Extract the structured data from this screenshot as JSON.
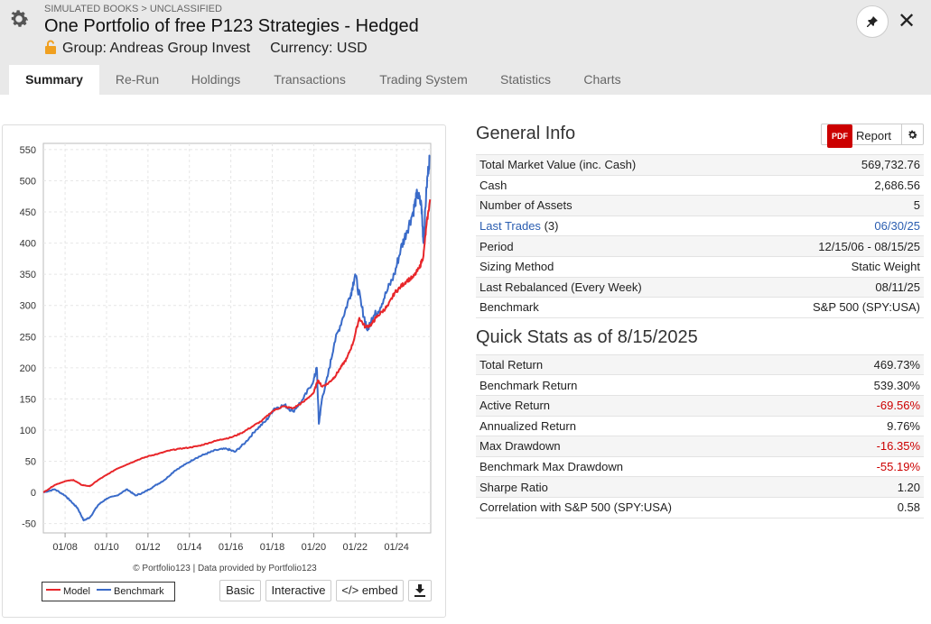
{
  "header": {
    "breadcrumb": "SIMULATED BOOKS > UNCLASSIFIED",
    "title": "One Portfolio of free P123 Strategies - Hedged",
    "group": "Group: Andreas Group Invest",
    "currency": "Currency: USD"
  },
  "tabs": [
    "Summary",
    "Re-Run",
    "Holdings",
    "Transactions",
    "Trading System",
    "Statistics",
    "Charts"
  ],
  "general_info": {
    "title": "General Info",
    "report_label": "Report",
    "pdf_label": "PDF",
    "rows": [
      {
        "label": "Total Market Value (inc. Cash)",
        "value": "569,732.76"
      },
      {
        "label": "Cash",
        "value": "2,686.56"
      },
      {
        "label": "Number of Assets",
        "value": "5"
      },
      {
        "label": "Last Trades",
        "count": "(3)",
        "value": "06/30/25"
      },
      {
        "label": "Period",
        "value": "12/15/06 - 08/15/25"
      },
      {
        "label": "Sizing Method",
        "value": "Static Weight"
      },
      {
        "label": "Last Rebalanced (Every Week)",
        "value": "08/11/25"
      },
      {
        "label": "Benchmark",
        "value": "S&P 500 (SPY:USA)"
      }
    ]
  },
  "quick_stats": {
    "title": "Quick Stats as of 8/15/2025",
    "rows": [
      {
        "label": "Total Return",
        "value": "469.73%"
      },
      {
        "label": "Benchmark Return",
        "value": "539.30%"
      },
      {
        "label": "Active Return",
        "value": "-69.56%"
      },
      {
        "label": "Annualized Return",
        "value": "9.76%"
      },
      {
        "label": "Max Drawdown",
        "value": "-16.35%"
      },
      {
        "label": "Benchmark Max Drawdown",
        "value": "-55.19%"
      },
      {
        "label": "Sharpe Ratio",
        "value": "1.20"
      },
      {
        "label": "Correlation with S&P 500 (SPY:USA)",
        "value": "0.58"
      }
    ]
  },
  "chart_buttons": {
    "basic": "Basic",
    "interactive": "Interactive",
    "embed": "</> embed"
  },
  "chart_credit": "© Portfolio123 | Data provided by Portfolio123",
  "colors": {
    "model": "#e8262a",
    "benchmark": "#3a6bc9",
    "negative": "#cc0000",
    "link": "#2a5db0"
  },
  "chart_data": {
    "type": "line",
    "ylim": [
      -65,
      560
    ],
    "yticks": [
      -50,
      0,
      50,
      100,
      150,
      200,
      250,
      300,
      350,
      400,
      450,
      500,
      550
    ],
    "xlim": [
      2006.95,
      2025.65
    ],
    "xticks": [
      {
        "v": 2008,
        "label": "01/08"
      },
      {
        "v": 2010,
        "label": "01/10"
      },
      {
        "v": 2012,
        "label": "01/12"
      },
      {
        "v": 2014,
        "label": "01/14"
      },
      {
        "v": 2016,
        "label": "01/16"
      },
      {
        "v": 2018,
        "label": "01/18"
      },
      {
        "v": 2020,
        "label": "01/20"
      },
      {
        "v": 2022,
        "label": "01/22"
      },
      {
        "v": 2024,
        "label": "01/24"
      }
    ],
    "series": [
      {
        "name": "Model",
        "color": "#e8262a",
        "x": [
          2006.96,
          2007.5,
          2008.0,
          2008.4,
          2008.8,
          2009.2,
          2009.6,
          2010.0,
          2010.5,
          2011.0,
          2011.5,
          2012.0,
          2012.5,
          2013.0,
          2013.5,
          2014.0,
          2014.5,
          2015.0,
          2015.5,
          2016.0,
          2016.5,
          2017.0,
          2017.5,
          2018.0,
          2018.5,
          2019.0,
          2019.5,
          2020.0,
          2020.2,
          2020.4,
          2020.7,
          2021.0,
          2021.3,
          2021.6,
          2021.9,
          2022.2,
          2022.5,
          2022.8,
          2023.0,
          2023.3,
          2023.6,
          2023.9,
          2024.2,
          2024.5,
          2024.8,
          2025.1,
          2025.3,
          2025.45,
          2025.62
        ],
        "y": [
          0,
          12,
          18,
          20,
          12,
          10,
          20,
          28,
          38,
          45,
          52,
          58,
          62,
          67,
          70,
          72,
          75,
          80,
          85,
          88,
          95,
          105,
          115,
          130,
          138,
          135,
          145,
          160,
          180,
          170,
          175,
          185,
          200,
          215,
          240,
          280,
          265,
          270,
          280,
          290,
          300,
          320,
          330,
          340,
          345,
          360,
          380,
          430,
          470
        ]
      },
      {
        "name": "Benchmark",
        "color": "#3a6bc9",
        "x": [
          2006.96,
          2007.5,
          2008.0,
          2008.3,
          2008.6,
          2008.9,
          2009.2,
          2009.6,
          2010.0,
          2010.5,
          2011.0,
          2011.4,
          2011.8,
          2012.3,
          2012.8,
          2013.3,
          2013.8,
          2014.3,
          2014.8,
          2015.3,
          2015.8,
          2016.2,
          2016.7,
          2017.2,
          2017.7,
          2018.1,
          2018.6,
          2019.0,
          2019.5,
          2020.0,
          2020.15,
          2020.25,
          2020.4,
          2020.7,
          2021.0,
          2021.4,
          2021.8,
          2022.0,
          2022.3,
          2022.6,
          2022.8,
          2023.1,
          2023.5,
          2023.9,
          2024.2,
          2024.5,
          2024.8,
          2025.0,
          2025.2,
          2025.3,
          2025.45,
          2025.6
        ],
        "y": [
          0,
          5,
          -5,
          -15,
          -25,
          -45,
          -40,
          -20,
          -10,
          -5,
          5,
          -5,
          0,
          10,
          20,
          35,
          45,
          55,
          62,
          68,
          70,
          65,
          80,
          100,
          115,
          135,
          140,
          130,
          150,
          180,
          200,
          110,
          150,
          190,
          240,
          280,
          320,
          350,
          300,
          260,
          280,
          290,
          320,
          350,
          390,
          420,
          450,
          480,
          460,
          400,
          490,
          540
        ]
      }
    ]
  }
}
